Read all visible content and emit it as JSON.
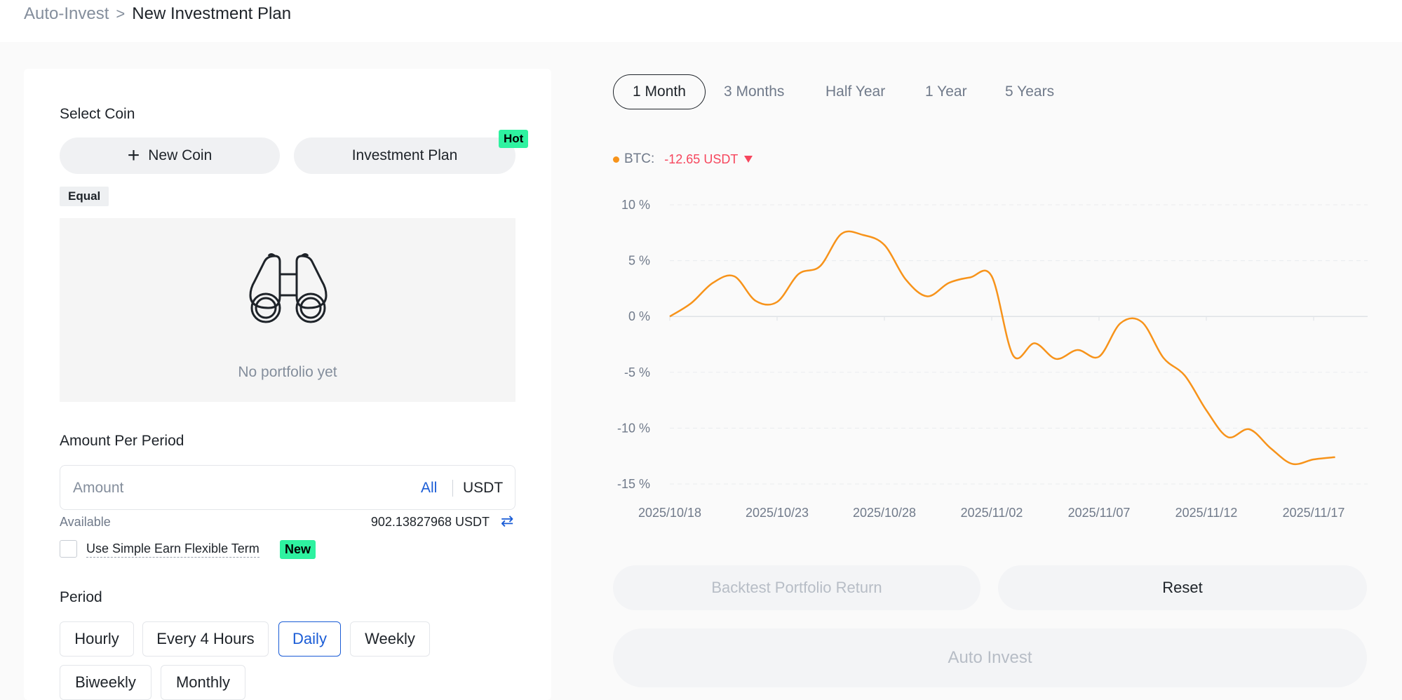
{
  "breadcrumb": {
    "parent": "Auto-Invest",
    "separator": ">",
    "current": "New Investment Plan"
  },
  "select_coin": {
    "label": "Select Coin",
    "new_coin_label": "New Coin",
    "investment_plan_label": "Investment Plan",
    "hot_badge": "Hot",
    "equal_tag": "Equal",
    "empty_text": "No portfolio yet"
  },
  "amount": {
    "label": "Amount Per Period",
    "placeholder": "Amount",
    "all_label": "All",
    "unit": "USDT",
    "available_label": "Available",
    "available_value": "902.13827968 USDT",
    "simple_earn_label": "Use Simple Earn Flexible Term",
    "new_badge": "New"
  },
  "period": {
    "label": "Period",
    "options": [
      "Hourly",
      "Every 4 Hours",
      "Daily",
      "Weekly",
      "Biweekly",
      "Monthly"
    ],
    "selected": "Daily"
  },
  "ranges": {
    "active": "1 Month",
    "others": [
      "3 Months",
      "Half Year",
      "1 Year",
      "5 Years"
    ]
  },
  "legend": {
    "name": "BTC:",
    "value": "-12.65 USDT",
    "color": "#f7931a",
    "value_color": "#f6465d"
  },
  "chart_data": {
    "type": "line",
    "title": "",
    "xlabel": "",
    "ylabel": "",
    "ylim": [
      -15,
      10
    ],
    "y_ticks": [
      "10 %",
      "5 %",
      "0 %",
      "-5 %",
      "-10 %",
      "-15 %"
    ],
    "y_tick_values": [
      10,
      5,
      0,
      -5,
      -10,
      -15
    ],
    "x_ticks": [
      "2025/10/18",
      "2025/10/23",
      "2025/10/28",
      "2025/11/02",
      "2025/11/07",
      "2025/11/12",
      "2025/11/17"
    ],
    "x_domain": [
      "2025/10/18",
      "2025/11/18"
    ],
    "grid": true,
    "series": [
      {
        "name": "BTC",
        "color": "#f7931a",
        "x": [
          "2025/10/18",
          "2025/10/19",
          "2025/10/20",
          "2025/10/21",
          "2025/10/22",
          "2025/10/23",
          "2025/10/24",
          "2025/10/25",
          "2025/10/26",
          "2025/10/27",
          "2025/10/28",
          "2025/10/29",
          "2025/10/30",
          "2025/10/31",
          "2025/11/01",
          "2025/11/02",
          "2025/11/03",
          "2025/11/04",
          "2025/11/05",
          "2025/11/06",
          "2025/11/07",
          "2025/11/08",
          "2025/11/09",
          "2025/11/10",
          "2025/11/11",
          "2025/11/12",
          "2025/11/13",
          "2025/11/14",
          "2025/11/15",
          "2025/11/16",
          "2025/11/17",
          "2025/11/18"
        ],
        "values": [
          0.0,
          1.2,
          3.0,
          3.6,
          1.4,
          1.3,
          3.8,
          4.5,
          7.4,
          7.3,
          6.4,
          3.3,
          1.8,
          3.0,
          3.5,
          3.6,
          -3.5,
          -2.4,
          -3.8,
          -3.0,
          -3.6,
          -0.6,
          -0.5,
          -3.7,
          -5.3,
          -8.4,
          -10.8,
          -10.1,
          -11.8,
          -13.2,
          -12.8,
          -12.6
        ]
      }
    ]
  },
  "actions": {
    "backtest_label": "Backtest Portfolio Return",
    "reset_label": "Reset",
    "auto_invest_label": "Auto Invest"
  }
}
